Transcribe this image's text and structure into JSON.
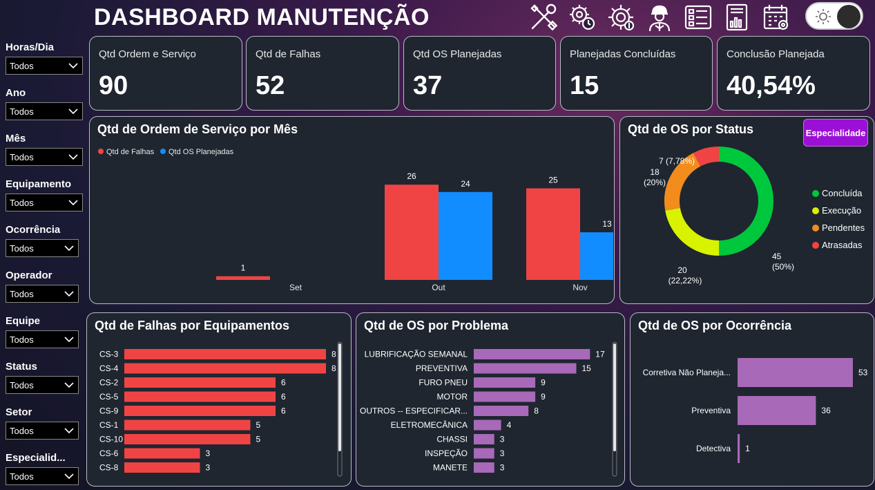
{
  "header": {
    "title": "DASHBOARD MANUTENÇÃO",
    "nav_icons": [
      "tools-icon",
      "maintenance-clock-icon",
      "gear-money-icon",
      "engineer-icon",
      "checklist-form-icon",
      "report-chart-icon",
      "calendar-gear-icon"
    ],
    "theme_toggle_icon": "sun-icon"
  },
  "filters": [
    {
      "label": "Horas/Dia",
      "value": "Todos"
    },
    {
      "label": "Ano",
      "value": "Todos"
    },
    {
      "label": "Mês",
      "value": "Todos"
    },
    {
      "label": "Equipamento",
      "value": "Todos"
    },
    {
      "label": "Ocorrência",
      "value": "Todos"
    },
    {
      "label": "Operador",
      "value": "Todos"
    },
    {
      "label": "Equipe",
      "value": "Todos"
    },
    {
      "label": "Status",
      "value": "Todos"
    },
    {
      "label": "Setor",
      "value": "Todos"
    },
    {
      "label": "Especialid...",
      "value": "Todos"
    }
  ],
  "kpis": [
    {
      "label": "Qtd Ordem e Serviço",
      "value": "90"
    },
    {
      "label": "Qtd de Falhas",
      "value": "52"
    },
    {
      "label": "Qtd OS Planejadas",
      "value": "37"
    },
    {
      "label": "Planejadas Concluídas",
      "value": "15"
    },
    {
      "label": "Conclusão Planejada",
      "value": "40,54%"
    }
  ],
  "colors": {
    "red": "#f04444",
    "blue": "#118dff",
    "green": "#00c83c",
    "yellow": "#d9f200",
    "orange": "#f28c1c",
    "purple": "#a869b8",
    "accent": "#9b10d6"
  },
  "specialty_button": "Especialidade",
  "chart_data": [
    {
      "type": "bar",
      "title": "Qtd de Ordem de Serviço por Mês",
      "categories": [
        "Set",
        "Out",
        "Nov"
      ],
      "series": [
        {
          "name": "Qtd de Falhas",
          "values": [
            1,
            26,
            25
          ]
        },
        {
          "name": "Qtd OS Planejadas",
          "values": [
            null,
            24,
            13
          ]
        }
      ],
      "legend": "top-left",
      "grid": false
    },
    {
      "type": "pie",
      "title": "Qtd de OS por Status",
      "slices": [
        {
          "name": "Concluída",
          "value": 45,
          "label": "45",
          "pct": "(50%)"
        },
        {
          "name": "Execução",
          "value": 20,
          "label": "20",
          "pct": "(22,22%)"
        },
        {
          "name": "Pendentes",
          "value": 18,
          "label": "18",
          "pct": "(20%)"
        },
        {
          "name": "Atrasadas",
          "value": 7,
          "label": "7 (7,78%)",
          "pct": ""
        }
      ],
      "legend": "right"
    },
    {
      "type": "bar",
      "orientation": "horizontal",
      "title": "Qtd de Falhas por Equipamentos",
      "categories": [
        "CS-3",
        "CS-4",
        "CS-2",
        "CS-5",
        "CS-9",
        "CS-1",
        "CS-10",
        "CS-6",
        "CS-8"
      ],
      "values": [
        8,
        8,
        6,
        6,
        6,
        5,
        5,
        3,
        3
      ]
    },
    {
      "type": "bar",
      "orientation": "horizontal",
      "title": "Qtd de OS por Problema",
      "categories": [
        "LUBRIFICAÇÃO SEMANAL",
        "PREVENTIVA",
        "FURO PNEU",
        "MOTOR",
        "OUTROS -- ESPECIFICAR...",
        "ELETROMECÂNICA",
        "CHASSI",
        "INSPEÇÃO",
        "MANETE"
      ],
      "values": [
        17,
        15,
        9,
        9,
        8,
        4,
        3,
        3,
        3
      ]
    },
    {
      "type": "bar",
      "orientation": "horizontal",
      "title": "Qtd de OS por Ocorrência",
      "categories": [
        "Corretiva Não Planeja...",
        "Preventiva",
        "Detectiva"
      ],
      "values": [
        53,
        36,
        1
      ]
    }
  ]
}
